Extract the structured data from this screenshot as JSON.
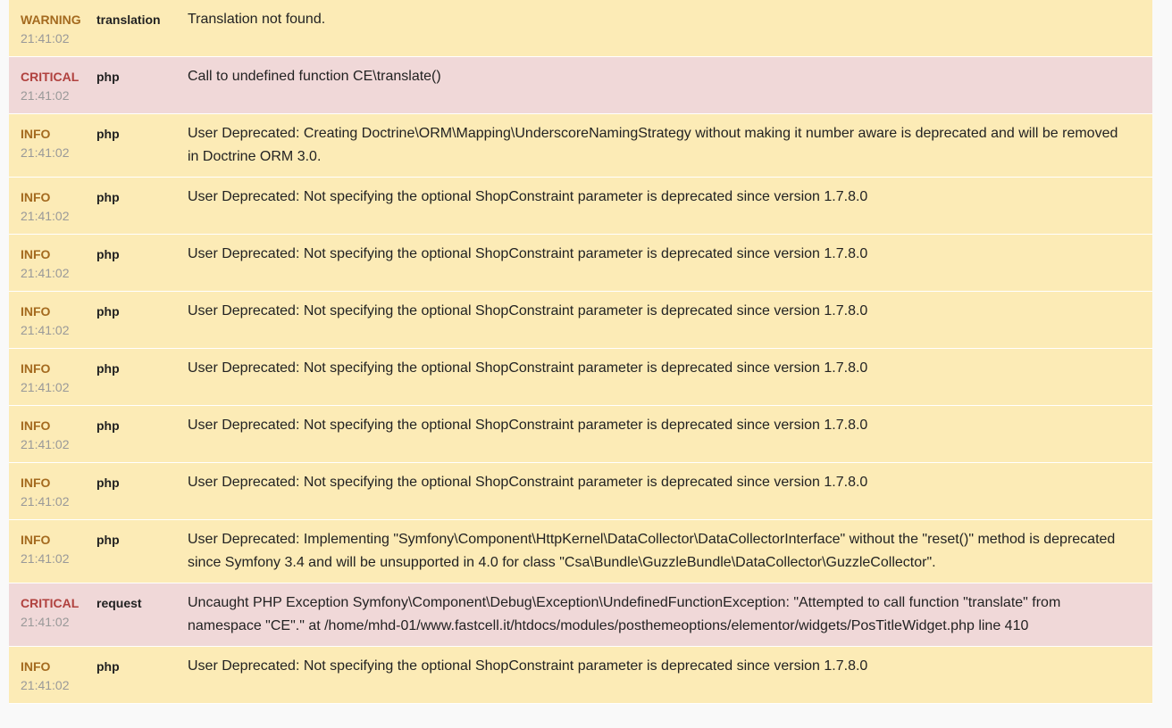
{
  "logs": [
    {
      "type": "warning",
      "level": "WARNING",
      "time": "21:41:02",
      "channel": "translation",
      "message": "Translation not found."
    },
    {
      "type": "critical",
      "level": "CRITICAL",
      "time": "21:41:02",
      "channel": "php",
      "message": "Call to undefined function CE\\translate()"
    },
    {
      "type": "info",
      "level": "INFO",
      "time": "21:41:02",
      "channel": "php",
      "message": "User Deprecated: Creating Doctrine\\ORM\\Mapping\\UnderscoreNamingStrategy without making it number aware is deprecated and will be removed in Doctrine ORM 3.0."
    },
    {
      "type": "info",
      "level": "INFO",
      "time": "21:41:02",
      "channel": "php",
      "message": "User Deprecated: Not specifying the optional ShopConstraint parameter is deprecated since version 1.7.8.0"
    },
    {
      "type": "info",
      "level": "INFO",
      "time": "21:41:02",
      "channel": "php",
      "message": "User Deprecated: Not specifying the optional ShopConstraint parameter is deprecated since version 1.7.8.0"
    },
    {
      "type": "info",
      "level": "INFO",
      "time": "21:41:02",
      "channel": "php",
      "message": "User Deprecated: Not specifying the optional ShopConstraint parameter is deprecated since version 1.7.8.0"
    },
    {
      "type": "info",
      "level": "INFO",
      "time": "21:41:02",
      "channel": "php",
      "message": "User Deprecated: Not specifying the optional ShopConstraint parameter is deprecated since version 1.7.8.0"
    },
    {
      "type": "info",
      "level": "INFO",
      "time": "21:41:02",
      "channel": "php",
      "message": "User Deprecated: Not specifying the optional ShopConstraint parameter is deprecated since version 1.7.8.0"
    },
    {
      "type": "info",
      "level": "INFO",
      "time": "21:41:02",
      "channel": "php",
      "message": "User Deprecated: Not specifying the optional ShopConstraint parameter is deprecated since version 1.7.8.0"
    },
    {
      "type": "info",
      "level": "INFO",
      "time": "21:41:02",
      "channel": "php",
      "message": "User Deprecated: Implementing \"Symfony\\Component\\HttpKernel\\DataCollector\\DataCollectorInterface\" without the \"reset()\" method is deprecated since Symfony 3.4 and will be unsupported in 4.0 for class \"Csa\\Bundle\\GuzzleBundle\\DataCollector\\GuzzleCollector\"."
    },
    {
      "type": "critical",
      "level": "CRITICAL",
      "time": "21:41:02",
      "channel": "request",
      "message": "Uncaught PHP Exception Symfony\\Component\\Debug\\Exception\\UndefinedFunctionException: \"Attempted to call function \"translate\" from namespace \"CE\".\" at /home/mhd-01/www.fastcell.it/htdocs/modules/posthemeoptions/elementor/widgets/PosTitleWidget.php line 410"
    },
    {
      "type": "info",
      "level": "INFO",
      "time": "21:41:02",
      "channel": "php",
      "message": "User Deprecated: Not specifying the optional ShopConstraint parameter is deprecated since version 1.7.8.0"
    }
  ]
}
